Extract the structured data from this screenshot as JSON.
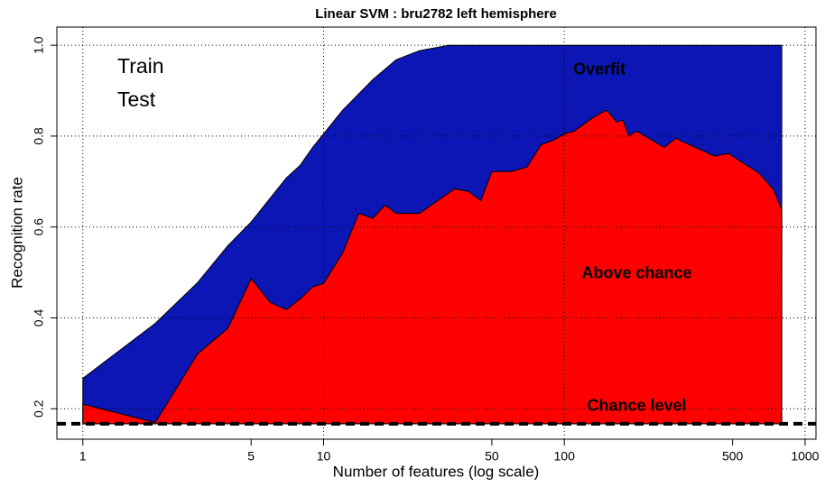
{
  "chart_data": {
    "type": "area",
    "title": "Linear SVM : bru2782 left hemisphere",
    "xlabel": "Number of features (log scale)",
    "ylabel": "Recognition rate",
    "xscale": "log",
    "grid": true,
    "xlim": [
      0.78,
      1110
    ],
    "ylim": [
      0.133,
      1.04
    ],
    "xticks": [
      1,
      5,
      10,
      50,
      100,
      500,
      1000
    ],
    "yticks": [
      {
        "value": 0.2,
        "label": "0.2"
      },
      {
        "value": 0.4,
        "label": "0.4"
      },
      {
        "value": 0.6,
        "label": "0.6"
      },
      {
        "value": 0.8,
        "label": "0.8"
      },
      {
        "value": 1,
        "label": "1.0"
      }
    ],
    "chance_level": 0.167,
    "series": [
      {
        "name": "Train",
        "color": "#0c16b4",
        "x": [
          1,
          2,
          3,
          4,
          5,
          7,
          8,
          9,
          10,
          12,
          16,
          20,
          25,
          33,
          800
        ],
        "values": [
          0.267,
          0.388,
          0.478,
          0.559,
          0.611,
          0.708,
          0.736,
          0.775,
          0.805,
          0.857,
          0.924,
          0.968,
          0.988,
          1.0,
          1.0
        ]
      },
      {
        "name": "Test",
        "color": "#ff0000",
        "x": [
          1,
          2,
          3,
          4,
          5,
          6,
          7,
          8,
          9,
          10,
          12,
          14,
          16,
          18,
          20,
          25,
          35,
          40,
          45,
          50,
          60,
          70,
          80,
          90,
          100,
          110,
          130,
          140,
          150,
          165,
          175,
          185,
          200,
          260,
          290,
          420,
          480,
          645,
          740,
          800
        ],
        "values": [
          0.21,
          0.17,
          0.321,
          0.377,
          0.486,
          0.434,
          0.418,
          0.442,
          0.468,
          0.476,
          0.543,
          0.63,
          0.619,
          0.648,
          0.63,
          0.63,
          0.684,
          0.678,
          0.658,
          0.722,
          0.722,
          0.732,
          0.781,
          0.791,
          0.805,
          0.811,
          0.839,
          0.849,
          0.857,
          0.831,
          0.835,
          0.801,
          0.811,
          0.775,
          0.795,
          0.756,
          0.762,
          0.718,
          0.682,
          0.638
        ]
      }
    ],
    "annotations": [
      {
        "text": "Overfit",
        "x": 140,
        "y": 0.945,
        "color": "#ffffff"
      },
      {
        "text": "Above chance",
        "x": 200,
        "y": 0.497,
        "color": "#000000"
      },
      {
        "text": "Chance level",
        "x": 200,
        "y": 0.205,
        "color": "#000000"
      }
    ]
  }
}
